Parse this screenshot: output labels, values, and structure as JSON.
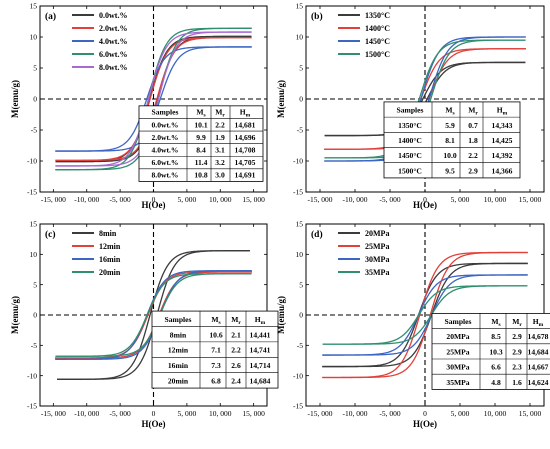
{
  "chart_data": [
    {
      "type": "line",
      "panel_label": "(a)",
      "xlabel": "H(Oe)",
      "ylabel": "M(emu/g)",
      "xlim": [
        -17000,
        17000
      ],
      "ylim": [
        -15,
        15
      ],
      "xticks": [
        -15000,
        -10000,
        -5000,
        0,
        5000,
        10000,
        15000
      ],
      "xtick_labels": [
        "-15, 000",
        "-10, 000",
        "-5, 000",
        "0",
        "5, 000",
        "10, 000",
        "15, 000"
      ],
      "yticks": [
        -15,
        -10,
        -5,
        0,
        5,
        10,
        15
      ],
      "ytick_labels": [
        "-15",
        "-10",
        "-5",
        "0",
        "5",
        "10",
        "15"
      ],
      "legend_position": "top-left",
      "series": [
        {
          "name": "0.0wt.%",
          "color": "#3b3b3b",
          "ms": 10.1,
          "mr": 2.2,
          "hmax": 14681
        },
        {
          "name": "2.0wt.%",
          "color": "#e0413b",
          "ms": 9.9,
          "mr": 1.9,
          "hmax": 14696
        },
        {
          "name": "4.0wt.%",
          "color": "#3d66c4",
          "ms": 8.4,
          "mr": 3.1,
          "hmax": 14708
        },
        {
          "name": "6.0wt.%",
          "color": "#2f8f6f",
          "ms": 11.4,
          "mr": 3.2,
          "hmax": 14705
        },
        {
          "name": "8.0wt.%",
          "color": "#a86ad2",
          "ms": 10.8,
          "mr": 3.0,
          "hmax": 14691
        }
      ],
      "table": {
        "headers": [
          "Samples",
          "Ms",
          "Mr",
          "Hm"
        ],
        "rows": [
          [
            "0.0wt.%",
            "10.1",
            "2.2",
            "14,681"
          ],
          [
            "2.0wt.%",
            "9.9",
            "1.9",
            "14,696"
          ],
          [
            "4.0wt.%",
            "8.4",
            "3.1",
            "14,708"
          ],
          [
            "6.0wt.%",
            "11.4",
            "3.2",
            "14,705"
          ],
          [
            "8.0wt.%",
            "10.8",
            "3.0",
            "14,691"
          ]
        ]
      }
    },
    {
      "type": "line",
      "panel_label": "(b)",
      "xlabel": "H(Oe)",
      "ylabel": "M(emu/g)",
      "xlim": [
        -17000,
        17000
      ],
      "ylim": [
        -15,
        15
      ],
      "xticks": [
        -15000,
        -10000,
        -5000,
        0,
        5000,
        10000,
        15000
      ],
      "xtick_labels": [
        "-15, 000",
        "-10, 000",
        "-5, 000",
        "0",
        "5, 000",
        "10, 000",
        "15, 000"
      ],
      "yticks": [
        -15,
        -10,
        -5,
        0,
        5,
        10,
        15
      ],
      "ytick_labels": [
        "-15",
        "-10",
        "-5",
        "0",
        "5",
        "10",
        "15"
      ],
      "legend_position": "top-left",
      "series": [
        {
          "name": "1350°C",
          "color": "#3b3b3b",
          "ms": 5.9,
          "mr": 0.7,
          "hmax": 14343
        },
        {
          "name": "1400°C",
          "color": "#e0413b",
          "ms": 8.1,
          "mr": 1.8,
          "hmax": 14425
        },
        {
          "name": "1450°C",
          "color": "#3d66c4",
          "ms": 10.0,
          "mr": 2.2,
          "hmax": 14392
        },
        {
          "name": "1500°C",
          "color": "#2f8f6f",
          "ms": 9.5,
          "mr": 2.9,
          "hmax": 14366
        }
      ],
      "table": {
        "headers": [
          "Samples",
          "Ms",
          "Mr",
          "Hm"
        ],
        "rows": [
          [
            "1350°C",
            "5.9",
            "0.7",
            "14,343"
          ],
          [
            "1400°C",
            "8.1",
            "1.8",
            "14,425"
          ],
          [
            "1450°C",
            "10.0",
            "2.2",
            "14,392"
          ],
          [
            "1500°C",
            "9.5",
            "2.9",
            "14,366"
          ]
        ]
      }
    },
    {
      "type": "line",
      "panel_label": "(c)",
      "xlabel": "H(Oe)",
      "ylabel": "M(emu/g)",
      "xlim": [
        -17000,
        17000
      ],
      "ylim": [
        -15,
        15
      ],
      "xticks": [
        -15000,
        -10000,
        -5000,
        0,
        5000,
        10000,
        15000
      ],
      "xtick_labels": [
        "-15, 000",
        "-10, 000",
        "-5, 000",
        "0",
        "5, 000",
        "10, 000",
        "15, 000"
      ],
      "yticks": [
        -15,
        -10,
        -5,
        0,
        5,
        10,
        15
      ],
      "ytick_labels": [
        "-15",
        "-10",
        "-5",
        "0",
        "5",
        "10",
        "15"
      ],
      "legend_position": "top-left",
      "series": [
        {
          "name": "8min",
          "color": "#3b3b3b",
          "ms": 10.6,
          "mr": 2.1,
          "hmax": 14441
        },
        {
          "name": "12min",
          "color": "#e0413b",
          "ms": 7.1,
          "mr": 2.2,
          "hmax": 14741
        },
        {
          "name": "16min",
          "color": "#3d66c4",
          "ms": 7.3,
          "mr": 2.6,
          "hmax": 14714
        },
        {
          "name": "20min",
          "color": "#2f8f6f",
          "ms": 6.8,
          "mr": 2.4,
          "hmax": 14684
        }
      ],
      "table": {
        "headers": [
          "Samples",
          "Ms",
          "Mr",
          "Hm"
        ],
        "rows": [
          [
            "8min",
            "10.6",
            "2.1",
            "14,441"
          ],
          [
            "12min",
            "7.1",
            "2.2",
            "14,741"
          ],
          [
            "16min",
            "7.3",
            "2.6",
            "14,714"
          ],
          [
            "20min",
            "6.8",
            "2.4",
            "14,684"
          ]
        ]
      }
    },
    {
      "type": "line",
      "panel_label": "(d)",
      "xlabel": "H(Oe)",
      "ylabel": "M(emu/g)",
      "xlim": [
        -17000,
        17000
      ],
      "ylim": [
        -15,
        15
      ],
      "xticks": [
        -15000,
        -10000,
        -5000,
        0,
        5000,
        10000,
        15000
      ],
      "xtick_labels": [
        "-15, 000",
        "-10, 000",
        "-5, 000",
        "0",
        "5, 000",
        "10, 000",
        "15, 000"
      ],
      "yticks": [
        -15,
        -10,
        -5,
        0,
        5,
        10,
        15
      ],
      "ytick_labels": [
        "-15",
        "-10",
        "-5",
        "0",
        "5",
        "10",
        "15"
      ],
      "legend_position": "top-left",
      "series": [
        {
          "name": "20MPa",
          "color": "#3b3b3b",
          "ms": 8.5,
          "mr": 2.9,
          "hmax": 14678
        },
        {
          "name": "25MPa",
          "color": "#e0413b",
          "ms": 10.3,
          "mr": 2.9,
          "hmax": 14684
        },
        {
          "name": "30MPa",
          "color": "#3d66c4",
          "ms": 6.6,
          "mr": 2.3,
          "hmax": 14667
        },
        {
          "name": "35MPa",
          "color": "#2f8f6f",
          "ms": 4.8,
          "mr": 1.6,
          "hmax": 14624
        }
      ],
      "table": {
        "headers": [
          "Samples",
          "Ms",
          "Mr",
          "Hm"
        ],
        "rows": [
          [
            "20MPa",
            "8.5",
            "2.9",
            "14,678"
          ],
          [
            "25MPa",
            "10.3",
            "2.9",
            "14,684"
          ],
          [
            "30MPa",
            "6.6",
            "2.3",
            "14,667"
          ],
          [
            "35MPa",
            "4.8",
            "1.6",
            "14,624"
          ]
        ]
      }
    }
  ]
}
